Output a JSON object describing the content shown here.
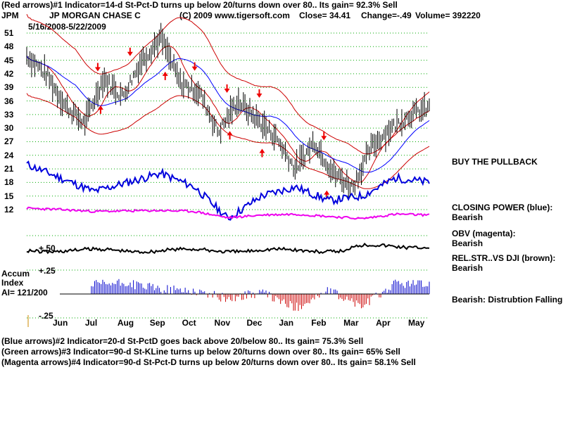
{
  "header": {
    "line1": "(Red arrows)#1 Indicator=14-d St-Pct-D turns up below 20/turns down over 80..  Its gain= 92.3% Sell",
    "ticker": "JPM",
    "company": "JP MORGAN CHASE C",
    "copyright": "(C) 2009 www.tigersoft.com",
    "close_label": "Close=  34.41",
    "change_label": "Change=-.49",
    "volume_label": "Volume=  392220",
    "date_range": "5/16/2008-5/22/2009"
  },
  "footer": {
    "line1": "(Blue arrows)#2 Indicator=20-d St-PctD goes back above 20/below 80..  Its gain= 75.3% Sell",
    "line2": "(Green arrows)#3 Indicator=90-d St-KLine turns up below 20/turns down over 80..  Its gain= 65% Sell",
    "line3": "(Magenta arrows)#4 Indicator=90-d St-Pct-D turns up below 20/turns down over 80..  Its gain= 58.1% Sell"
  },
  "side_panel": {
    "buy_note": "BUY THE PULLBACK",
    "closing_power": "CLOSING POWER (blue):",
    "closing_power_val": "Bearish",
    "obv": "OBV (magenta):",
    "obv_val": "Bearish",
    "relstr": "REL.STR..VS DJI (brown):",
    "relstr_val": "Bearish",
    "accum_note": "Bearish: Distrubtion Falling."
  },
  "accum": {
    "label1": "Accum",
    "label2": "Index",
    "ai": "AI= 121/200",
    "tick_pos": "+.25",
    "tick_neg": "-.25",
    "tick_mid": "+.50"
  },
  "colors": {
    "price": "#000000",
    "bands": "#cc0000",
    "ma": "#0000ff",
    "closing_power": "#0000dd",
    "obv": "#ee00ee",
    "relstr": "#000000",
    "accum_pos": "#0000cc",
    "accum_neg": "#cc0000",
    "grid": "#00aa00",
    "arrow": "#ee0000"
  },
  "chart_data": {
    "type": "line",
    "title": "JP MORGAN CHASE C",
    "xlabel": "",
    "ylabel": "",
    "ylim": [
      12,
      51
    ],
    "y_ticks": [
      51,
      48,
      45,
      42,
      39,
      36,
      33,
      30,
      27,
      24,
      21,
      18,
      15,
      12
    ],
    "x_ticks": [
      "Jun",
      "Jul",
      "Aug",
      "Sep",
      "Oct",
      "Nov",
      "Dec",
      "Jan",
      "Feb",
      "Mar",
      "Apr",
      "May"
    ],
    "grid": true,
    "series": [
      {
        "name": "JPM close",
        "x": [
          "May",
          "Jun",
          "Jul",
          "Jul",
          "Aug",
          "Aug",
          "Sep",
          "Sep",
          "Oct",
          "Oct",
          "Nov",
          "Nov",
          "Dec",
          "Dec",
          "Jan",
          "Jan",
          "Feb",
          "Feb",
          "Mar",
          "Mar",
          "Apr",
          "May"
        ],
        "values": [
          46,
          42,
          35,
          31,
          41,
          37,
          45,
          50,
          40,
          38,
          29,
          36,
          32,
          28,
          21,
          27,
          20,
          17,
          26,
          30,
          33,
          34.41
        ]
      },
      {
        "name": "Closing Power",
        "x": [
          "May",
          "Jun",
          "Jul",
          "Aug",
          "Sep",
          "Oct",
          "Nov",
          "Dec",
          "Jan",
          "Feb",
          "Mar",
          "Apr",
          "May"
        ],
        "values": [
          22,
          19,
          16,
          18,
          20,
          17,
          10,
          15,
          17,
          14,
          15,
          19,
          18
        ]
      }
    ],
    "arrows_sell": [
      "Jul",
      "Aug",
      "Oct",
      "Nov",
      "Dec",
      "Feb"
    ],
    "arrows_buy": [
      "Jul",
      "Sep",
      "Nov",
      "Dec",
      "Feb"
    ]
  }
}
